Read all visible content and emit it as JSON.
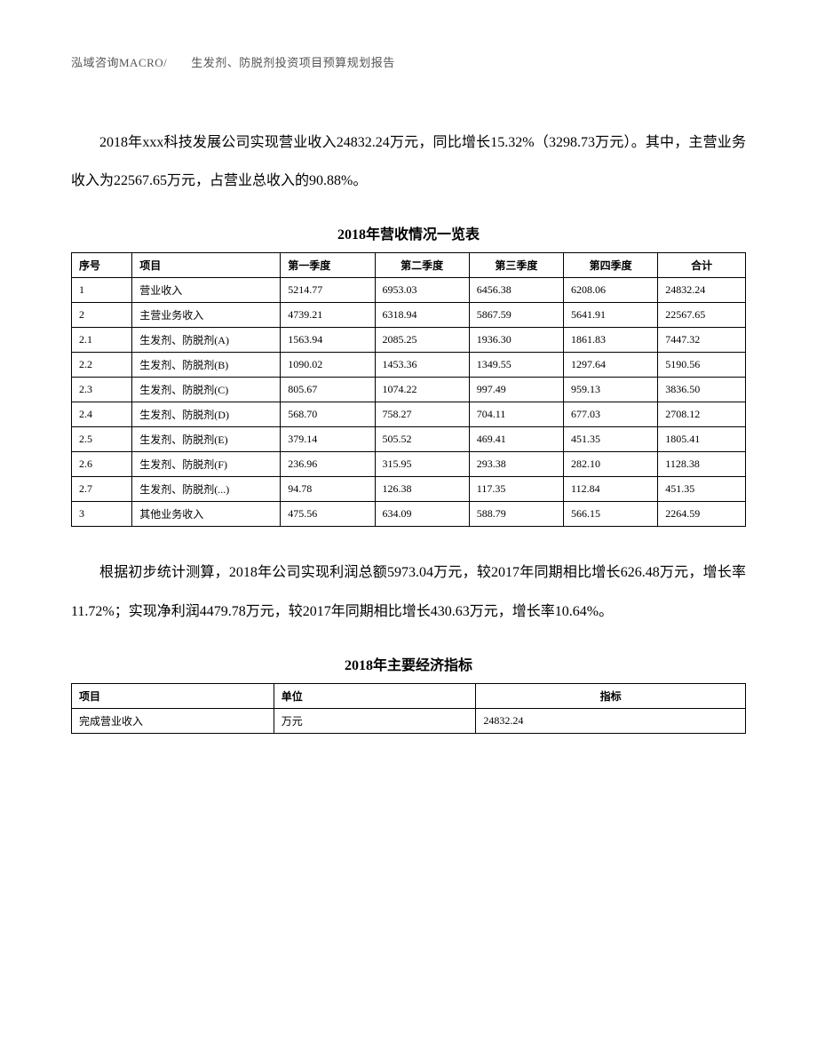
{
  "header": "泓域咨询MACRO/　　生发剂、防脱剂投资项目预算规划报告",
  "paragraph1": "2018年xxx科技发展公司实现营业收入24832.24万元，同比增长15.32%（3298.73万元）。其中，主营业务收入为22567.65万元，占营业总收入的90.88%。",
  "revenue_table": {
    "title": "2018年营收情况一览表",
    "columns": [
      "序号",
      "项目",
      "第一季度",
      "第二季度",
      "第三季度",
      "第四季度",
      "合计"
    ],
    "rows": [
      [
        "1",
        "营业收入",
        "5214.77",
        "6953.03",
        "6456.38",
        "6208.06",
        "24832.24"
      ],
      [
        "2",
        "主营业务收入",
        "4739.21",
        "6318.94",
        "5867.59",
        "5641.91",
        "22567.65"
      ],
      [
        "2.1",
        "生发剂、防脱剂(A)",
        "1563.94",
        "2085.25",
        "1936.30",
        "1861.83",
        "7447.32"
      ],
      [
        "2.2",
        "生发剂、防脱剂(B)",
        "1090.02",
        "1453.36",
        "1349.55",
        "1297.64",
        "5190.56"
      ],
      [
        "2.3",
        "生发剂、防脱剂(C)",
        "805.67",
        "1074.22",
        "997.49",
        "959.13",
        "3836.50"
      ],
      [
        "2.4",
        "生发剂、防脱剂(D)",
        "568.70",
        "758.27",
        "704.11",
        "677.03",
        "2708.12"
      ],
      [
        "2.5",
        "生发剂、防脱剂(E)",
        "379.14",
        "505.52",
        "469.41",
        "451.35",
        "1805.41"
      ],
      [
        "2.6",
        "生发剂、防脱剂(F)",
        "236.96",
        "315.95",
        "293.38",
        "282.10",
        "1128.38"
      ],
      [
        "2.7",
        "生发剂、防脱剂(...)",
        "94.78",
        "126.38",
        "117.35",
        "112.84",
        "451.35"
      ],
      [
        "3",
        "其他业务收入",
        "475.56",
        "634.09",
        "588.79",
        "566.15",
        "2264.59"
      ]
    ]
  },
  "paragraph2": "根据初步统计测算，2018年公司实现利润总额5973.04万元，较2017年同期相比增长626.48万元，增长率11.72%；实现净利润4479.78万元，较2017年同期相比增长430.63万元，增长率10.64%。",
  "indicator_table": {
    "title": "2018年主要经济指标",
    "columns": [
      "项目",
      "单位",
      "指标"
    ],
    "rows": [
      [
        "完成营业收入",
        "万元",
        "24832.24"
      ]
    ]
  }
}
